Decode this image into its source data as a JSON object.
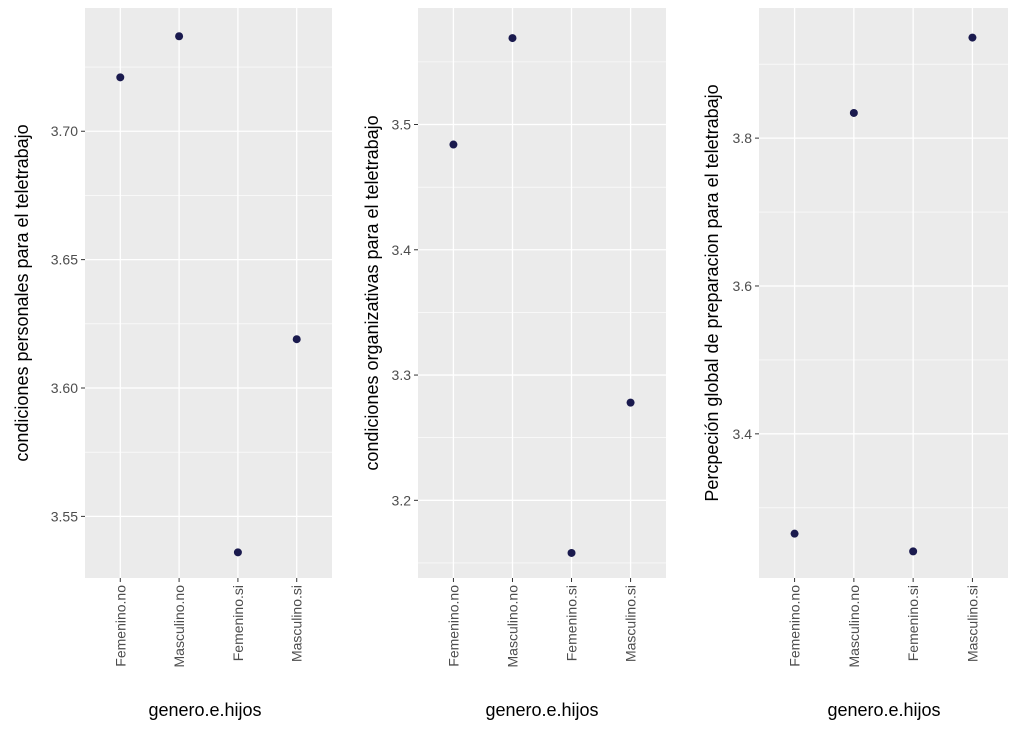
{
  "chart_data": [
    {
      "type": "scatter",
      "xlabel": "genero.e.hijos",
      "ylabel": "condiciones personales para el teletrabajo",
      "categories": [
        "Femenino.no",
        "Masculino.no",
        "Femenino.si",
        "Masculino.si"
      ],
      "values": [
        3.721,
        3.737,
        3.536,
        3.619
      ],
      "yticks": [
        3.55,
        3.6,
        3.65,
        3.7
      ],
      "ytick_labels": [
        "3.55",
        "3.60",
        "3.65",
        "3.70"
      ],
      "ylim": [
        3.526,
        3.748
      ],
      "grid": true
    },
    {
      "type": "scatter",
      "xlabel": "genero.e.hijos",
      "ylabel": "condiciones organizativas para el teletrabajo",
      "categories": [
        "Femenino.no",
        "Masculino.no",
        "Femenino.si",
        "Masculino.si"
      ],
      "values": [
        3.484,
        3.569,
        3.158,
        3.278
      ],
      "yticks": [
        3.2,
        3.3,
        3.4,
        3.5
      ],
      "ytick_labels": [
        "3.2",
        "3.3",
        "3.4",
        "3.5"
      ],
      "ylim": [
        3.138,
        3.593
      ],
      "grid": true
    },
    {
      "type": "scatter",
      "xlabel": "genero.e.hijos",
      "ylabel": "Percpeción global de preparacion para el teletrabajo",
      "categories": [
        "Femenino.no",
        "Masculino.no",
        "Femenino.si",
        "Masculino.si"
      ],
      "values": [
        3.265,
        3.834,
        3.241,
        3.936
      ],
      "yticks": [
        3.4,
        3.6,
        3.8
      ],
      "ytick_labels": [
        "3.4",
        "3.6",
        "3.8"
      ],
      "ylim": [
        3.205,
        3.976
      ],
      "grid": true
    }
  ],
  "colors": {
    "panel": "#ebebeb",
    "grid": "#ffffff",
    "point": "#1a1a4e"
  }
}
